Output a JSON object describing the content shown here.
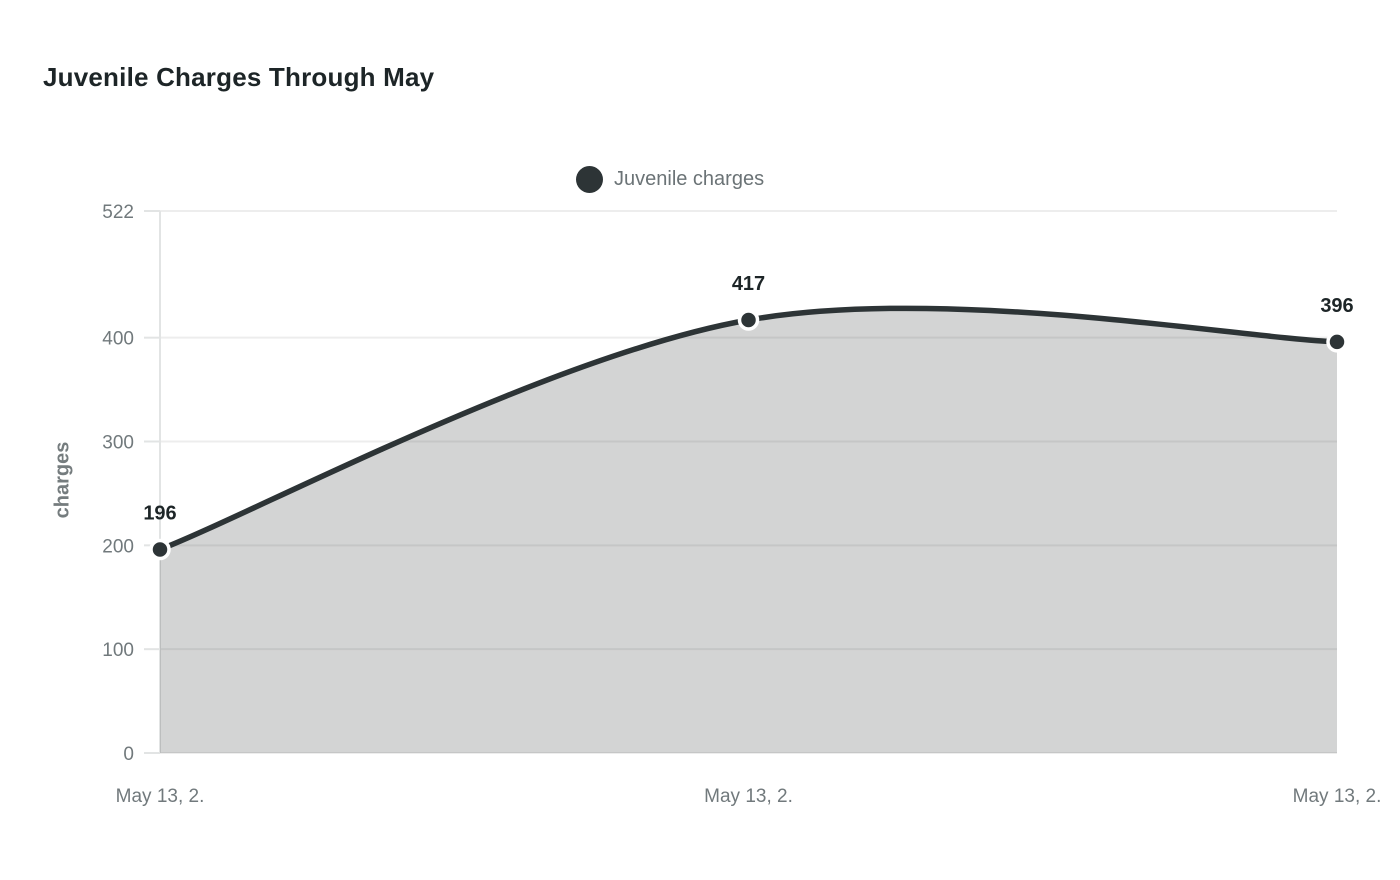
{
  "page": {
    "title": "Juvenile Charges Through May"
  },
  "legend": {
    "items": [
      {
        "label": "Juvenile charges",
        "marker": "circle-icon"
      }
    ]
  },
  "chart_data": {
    "type": "area",
    "title": "Juvenile Charges Through May",
    "x": [
      "May 13, 2.",
      "May 13, 2.",
      "May 13, 2."
    ],
    "series": [
      {
        "name": "Juvenile charges",
        "values": [
          196,
          417,
          396
        ]
      }
    ],
    "point_labels": [
      "196",
      "417",
      "396"
    ],
    "xlabel": "",
    "ylabel": "charges",
    "yticks": [
      0,
      100,
      200,
      300,
      400,
      522
    ],
    "ylim": [
      0,
      522
    ],
    "grid": true,
    "smooth": true,
    "legend_position": "top-center"
  },
  "colors": {
    "line": "#2d3436",
    "area_fill": "rgba(45,52,54,0.21)",
    "grid": "#ededed",
    "axis": "#e2e4e4",
    "text_dark": "#1d2527",
    "text_gray": "#71797c",
    "point_ring": "#ffffff",
    "background": "#ffffff"
  }
}
